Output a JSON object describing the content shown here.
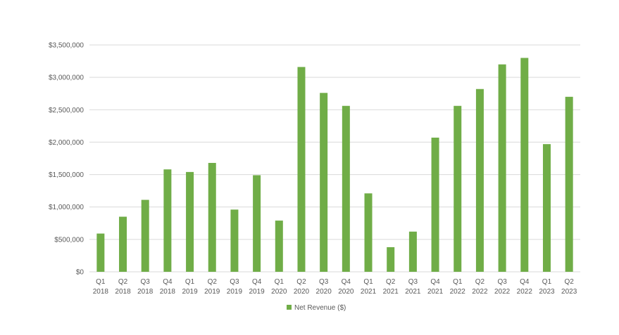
{
  "chart_data": {
    "type": "bar",
    "categories": [
      [
        "Q1",
        "2018"
      ],
      [
        "Q2",
        "2018"
      ],
      [
        "Q3",
        "2018"
      ],
      [
        "Q4",
        "2018"
      ],
      [
        "Q1",
        "2019"
      ],
      [
        "Q2",
        "2019"
      ],
      [
        "Q3",
        "2019"
      ],
      [
        "Q4",
        "2019"
      ],
      [
        "Q1",
        "2020"
      ],
      [
        "Q2",
        "2020"
      ],
      [
        "Q3",
        "2020"
      ],
      [
        "Q4",
        "2020"
      ],
      [
        "Q1",
        "2021"
      ],
      [
        "Q2",
        "2021"
      ],
      [
        "Q3",
        "2021"
      ],
      [
        "Q4",
        "2021"
      ],
      [
        "Q1",
        "2022"
      ],
      [
        "Q2",
        "2022"
      ],
      [
        "Q3",
        "2022"
      ],
      [
        "Q4",
        "2022"
      ],
      [
        "Q1",
        "2023"
      ],
      [
        "Q2",
        "2023"
      ]
    ],
    "series": [
      {
        "name": "Net Revenue ($)",
        "color": "#70AD47",
        "values": [
          590000,
          850000,
          1110000,
          1580000,
          1540000,
          1680000,
          960000,
          1490000,
          790000,
          3160000,
          2760000,
          2560000,
          1210000,
          380000,
          620000,
          2070000,
          2560000,
          2820000,
          3200000,
          3300000,
          1970000,
          2700000
        ]
      }
    ],
    "ylim": [
      0,
      3500000
    ],
    "yticks": [
      0,
      500000,
      1000000,
      1500000,
      2000000,
      2500000,
      3000000,
      3500000
    ],
    "ytick_labels": [
      "$0",
      "$500,000",
      "$1,000,000",
      "$1,500,000",
      "$2,000,000",
      "$2,500,000",
      "$3,000,000",
      "$3,500,000"
    ],
    "grid": true,
    "legend_position": "bottom",
    "gridline_color": "#D9D9D9"
  }
}
